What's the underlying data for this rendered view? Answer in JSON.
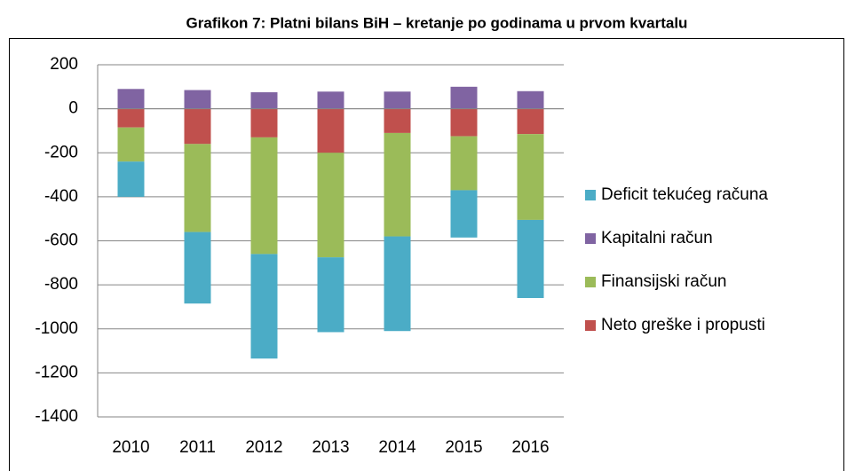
{
  "chart_data": {
    "type": "bar",
    "stacked": true,
    "title": "Grafikon 7: Platni bilans BiH – kretanje po godinama u prvom kvartalu",
    "categories": [
      "2010",
      "2011",
      "2012",
      "2013",
      "2014",
      "2015",
      "2016"
    ],
    "series": [
      {
        "name": "Deficit tekućeg računa",
        "color": "#4bacc6",
        "values": [
          -160,
          -325,
          -475,
          -340,
          -430,
          -215,
          -355
        ]
      },
      {
        "name": "Kapitalni račun",
        "color": "#8064a2",
        "values": [
          90,
          85,
          75,
          78,
          78,
          100,
          80
        ]
      },
      {
        "name": "Finansijski račun",
        "color": "#9bbb59",
        "values": [
          -155,
          -400,
          -530,
          -475,
          -470,
          -245,
          -390
        ]
      },
      {
        "name": "Neto greške i propusti",
        "color": "#c0504d",
        "values": [
          -85,
          -160,
          -130,
          -200,
          -110,
          -125,
          -115
        ]
      }
    ],
    "ylim": [
      -1400,
      200
    ],
    "yticks": [
      -1400,
      -1200,
      -1000,
      -800,
      -600,
      -400,
      -200,
      0,
      200
    ],
    "grid": true,
    "legend": "right"
  }
}
